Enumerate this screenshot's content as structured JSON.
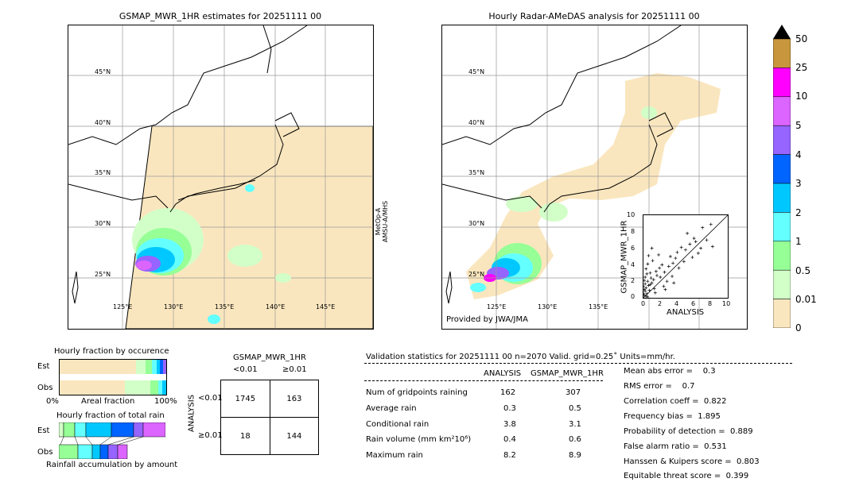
{
  "left_map": {
    "title": "GSMAP_MWR_1HR estimates for 20251111 00",
    "side_label_1": "MetOp-A",
    "side_label_2": "AMSU-A/MHS",
    "lat_labels": [
      "45°N",
      "40°N",
      "35°N",
      "30°N",
      "25°N"
    ],
    "lon_labels": [
      "125°E",
      "130°E",
      "135°E",
      "140°E",
      "145°E"
    ]
  },
  "right_map": {
    "title": "Hourly Radar-AMeDAS analysis for 20251111 00",
    "credit": "Provided by JWA/JMA",
    "lat_labels": [
      "45°N",
      "40°N",
      "35°N",
      "30°N",
      "25°N"
    ],
    "lon_labels": [
      "125°E",
      "130°E",
      "135°E"
    ]
  },
  "colorbar": {
    "labels": [
      "50",
      "25",
      "10",
      "5",
      "4",
      "3",
      "2",
      "1",
      "0.5",
      "0.01",
      "0"
    ],
    "colors": [
      "#c8963c",
      "#ff00ff",
      "#dc64ff",
      "#9664ff",
      "#0064ff",
      "#00c8ff",
      "#64ffff",
      "#96ff96",
      "#d2ffc8",
      "#fae6be"
    ]
  },
  "scatter": {
    "xlabel": "ANALYSIS",
    "ylabel": "GSMAP_MWR_1HR",
    "ticks": [
      "0",
      "2",
      "4",
      "6",
      "8",
      "10"
    ]
  },
  "fraction_occurrence": {
    "title": "Hourly fraction by occurence",
    "row1": "Est",
    "row2": "Obs",
    "axis_left": "0%",
    "axis_mid": "Areal fraction",
    "axis_right": "100%"
  },
  "fraction_total": {
    "title": "Hourly fraction of total rain",
    "row1": "Est",
    "row2": "Obs",
    "footer": "Rainfall accumulation by amount"
  },
  "contingency": {
    "header": "GSMAP_MWR_1HR",
    "col1": "<0.01",
    "col2": "≥0.01",
    "side": "ANALYSIS",
    "row1": "<0.01",
    "row2": "≥0.01",
    "cells": [
      "1745",
      "163",
      "18",
      "144"
    ]
  },
  "validation": {
    "header": "Validation statistics for 20251111 00  n=2070 Valid. grid=0.25˚ Units=mm/hr.",
    "col_a": "ANALYSIS",
    "col_b": "GSMAP_MWR_1HR",
    "rows": [
      {
        "label": "Num of gridpoints raining",
        "a": "162",
        "b": "307"
      },
      {
        "label": "Average rain",
        "a": "0.3",
        "b": "0.5"
      },
      {
        "label": "Conditional rain",
        "a": "3.8",
        "b": "3.1"
      },
      {
        "label": "Rain volume (mm km²10⁶)",
        "a": "0.4",
        "b": "0.6"
      },
      {
        "label": "Maximum rain",
        "a": "8.2",
        "b": "8.9"
      }
    ],
    "scores": [
      "Mean abs error =    0.3",
      "RMS error =    0.7",
      "Correlation coeff =  0.822",
      "Frequency bias =  1.895",
      "Probability of detection =  0.889",
      "False alarm ratio =  0.531",
      "Hanssen & Kuipers score =  0.803",
      "Equitable threat score =  0.399"
    ]
  },
  "chart_data": {
    "type": "scatter",
    "title": "",
    "xlabel": "ANALYSIS",
    "ylabel": "GSMAP_MWR_1HR",
    "xlim": [
      0,
      10
    ],
    "ylim": [
      0,
      10
    ],
    "points": [
      [
        0.1,
        0.3
      ],
      [
        0.2,
        0.8
      ],
      [
        0.3,
        1.2
      ],
      [
        0.4,
        0.5
      ],
      [
        0.5,
        2.0
      ],
      [
        0.6,
        1.5
      ],
      [
        0.2,
        2.5
      ],
      [
        0.8,
        3.0
      ],
      [
        1.0,
        1.8
      ],
      [
        1.2,
        2.2
      ],
      [
        0.3,
        3.5
      ],
      [
        0.5,
        4.1
      ],
      [
        1.5,
        3.2
      ],
      [
        2.0,
        2.5
      ],
      [
        2.2,
        4.0
      ],
      [
        2.5,
        3.1
      ],
      [
        3.0,
        3.8
      ],
      [
        3.2,
        5.0
      ],
      [
        3.5,
        4.2
      ],
      [
        4.0,
        5.5
      ],
      [
        4.2,
        3.6
      ],
      [
        4.5,
        6.1
      ],
      [
        5.0,
        5.8
      ],
      [
        5.5,
        6.5
      ],
      [
        6.0,
        7.2
      ],
      [
        6.5,
        5.4
      ],
      [
        7.0,
        8.5
      ],
      [
        7.5,
        7.0
      ],
      [
        8.0,
        8.9
      ],
      [
        8.2,
        6.2
      ],
      [
        0.1,
        1.0
      ],
      [
        0.2,
        1.7
      ],
      [
        0.4,
        2.9
      ],
      [
        0.7,
        0.9
      ],
      [
        0.9,
        2.4
      ],
      [
        1.1,
        4.5
      ],
      [
        1.3,
        1.1
      ],
      [
        1.6,
        2.7
      ],
      [
        1.8,
        5.2
      ],
      [
        2.4,
        1.4
      ],
      [
        2.8,
        2.0
      ],
      [
        3.4,
        2.6
      ],
      [
        3.8,
        4.8
      ],
      [
        4.8,
        4.4
      ],
      [
        5.2,
        7.8
      ],
      [
        5.8,
        4.9
      ],
      [
        6.2,
        6.8
      ],
      [
        6.8,
        6.0
      ],
      [
        1.0,
        6.0
      ],
      [
        0.6,
        5.1
      ],
      [
        0.0,
        0.5
      ],
      [
        0.0,
        1.4
      ],
      [
        0.1,
        2.1
      ],
      [
        0.3,
        0.2
      ],
      [
        1.4,
        0.6
      ],
      [
        2.6,
        1.0
      ],
      [
        3.6,
        1.8
      ],
      [
        0.5,
        0.1
      ],
      [
        0.8,
        1.6
      ],
      [
        1.9,
        3.6
      ]
    ]
  }
}
